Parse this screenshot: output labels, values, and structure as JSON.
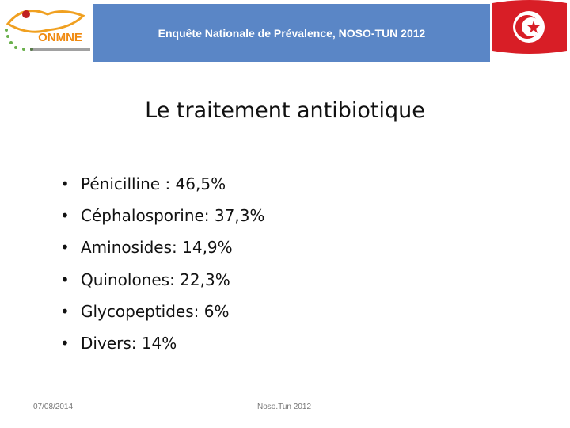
{
  "header": {
    "title": "Enquête Nationale de Prévalence, NOSO-TUN 2012",
    "logo_text": "ONMNE"
  },
  "slide": {
    "title": "Le traitement antibiotique",
    "bullets": [
      "Pénicilline : 46,5%",
      "Céphalosporine: 37,3%",
      "Aminosides: 14,9%",
      "Quinolones: 22,3%",
      "Glycopeptides: 6%",
      "Divers: 14%"
    ]
  },
  "footer": {
    "date": "07/08/2014",
    "center": "Noso.Tun 2012"
  }
}
